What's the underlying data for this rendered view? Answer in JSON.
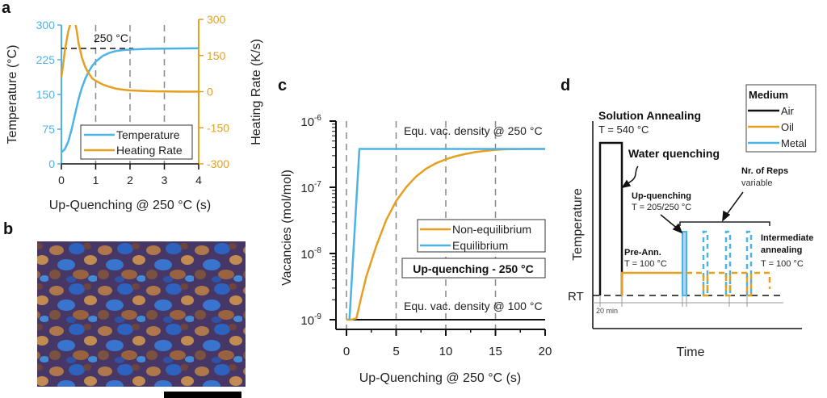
{
  "colors": {
    "blue": "#4db3e6",
    "orange": "#e6a020",
    "black": "#111111",
    "grid": "#888888"
  },
  "panel_labels": {
    "a": "a",
    "b": "b",
    "c": "c",
    "d": "d"
  },
  "chart_data": [
    {
      "id": "a",
      "type": "line",
      "title": "",
      "xlabel": "Up-Quenching @ 250 °C (s)",
      "ylabel": "Temperature (°C)",
      "y2label": "Heating Rate (K/s)",
      "xlim": [
        0,
        4
      ],
      "ylim": [
        0,
        300
      ],
      "y2lim": [
        -300,
        300
      ],
      "xticks": [
        "0",
        "1",
        "2",
        "3",
        "4"
      ],
      "yticks": [
        "0",
        "75",
        "150",
        "225",
        "300"
      ],
      "y2ticks": [
        "-300",
        "-150",
        "0",
        "150",
        "300"
      ],
      "grid": "vertical dashed",
      "annotation": {
        "text": "250 °C",
        "y": 250
      },
      "legend_position": "bottom-right",
      "series": [
        {
          "name": "Temperature",
          "axis": "left",
          "color": "#4db3e6",
          "x": [
            0,
            0.1,
            0.2,
            0.3,
            0.4,
            0.5,
            0.6,
            0.7,
            0.8,
            0.9,
            1.0,
            1.2,
            1.4,
            1.6,
            1.8,
            2.0,
            2.5,
            3.0,
            3.5,
            4.0
          ],
          "y": [
            25,
            32,
            48,
            75,
            108,
            140,
            165,
            185,
            200,
            212,
            221,
            233,
            240,
            244,
            246,
            247,
            248.5,
            249,
            249.5,
            250
          ]
        },
        {
          "name": "Heating Rate",
          "axis": "right",
          "color": "#e6a020",
          "x": [
            0,
            0.05,
            0.1,
            0.2,
            0.3,
            0.35,
            0.4,
            0.45,
            0.5,
            0.6,
            0.7,
            0.8,
            0.9,
            1.0,
            1.2,
            1.4,
            1.6,
            1.8,
            2.0,
            2.5,
            3.0,
            3.5,
            4.0
          ],
          "y": [
            60,
            110,
            170,
            250,
            300,
            300,
            290,
            250,
            200,
            140,
            100,
            75,
            55,
            45,
            30,
            20,
            12,
            8,
            5,
            2,
            1,
            0,
            0
          ]
        }
      ]
    },
    {
      "id": "c",
      "type": "line",
      "title": "",
      "xlabel": "Up-Quenching @ 250 °C (s)",
      "ylabel": "Vacancies (mol/mol)",
      "yscale": "log",
      "xlim": [
        0,
        20
      ],
      "ylim": [
        1e-09,
        1e-06
      ],
      "xticks": [
        "0",
        "5",
        "10",
        "15",
        "20"
      ],
      "yticks": [
        "10^-9",
        "10^-8",
        "10^-7",
        "10^-6"
      ],
      "grid": "vertical dashed",
      "annotations": [
        {
          "text": "Equ. vac. density @ 250 °C",
          "y": 3.8e-07
        },
        {
          "text": "Equ. vac. density @ 100 °C",
          "y": 1e-09
        }
      ],
      "boxed_label": "Up-quenching - 250 °C",
      "legend_position": "center-right",
      "series": [
        {
          "name": "Non-equilibrium",
          "color": "#e6a020",
          "x": [
            0,
            0.5,
            1,
            1.5,
            2,
            3,
            4,
            5,
            6,
            7,
            8,
            9,
            10,
            11,
            12,
            13,
            14,
            15,
            16,
            18,
            20
          ],
          "y": [
            1e-09,
            1e-09,
            1.05e-09,
            2.2e-09,
            4.5e-09,
            1.3e-08,
            3.2e-08,
            6.2e-08,
            1e-07,
            1.45e-07,
            1.9e-07,
            2.3e-07,
            2.65e-07,
            2.95e-07,
            3.2e-07,
            3.4e-07,
            3.55e-07,
            3.68e-07,
            3.75e-07,
            3.8e-07,
            3.8e-07
          ]
        },
        {
          "name": "Equilibrium",
          "color": "#4db3e6",
          "x": [
            0.3,
            1.3,
            20
          ],
          "y": [
            1e-09,
            3.8e-07,
            3.8e-07
          ]
        }
      ],
      "reference_line": {
        "y": 1e-09,
        "color": "#111111"
      }
    }
  ],
  "panel_b": {
    "description": "micrograph",
    "scale_bar": true
  },
  "panel_d": {
    "ylabel": "Temperature",
    "xlabel": "Time",
    "rt_label": "RT",
    "time_label": "20 min",
    "legend_title": "Medium",
    "legend_items": [
      {
        "label": "Air",
        "color": "#111111"
      },
      {
        "label": "Oil",
        "color": "#e6a020"
      },
      {
        "label": "Metal",
        "color": "#4db3e6"
      }
    ],
    "solution_annealing": "Solution Annealing",
    "solution_temp": "T = 540 °C",
    "water_quenching": "Water quenching",
    "reps_title": "Nr. of Reps",
    "reps_sub": "variable",
    "upq_title": "Up-quenching",
    "upq_temp": "T = 205/250 °C",
    "preann_title": "Pre-Ann.",
    "preann_temp": "T = 100 °C",
    "inter_title1": "Intermediate",
    "inter_title2": "annealing",
    "inter_temp": "T = 100 °C"
  }
}
